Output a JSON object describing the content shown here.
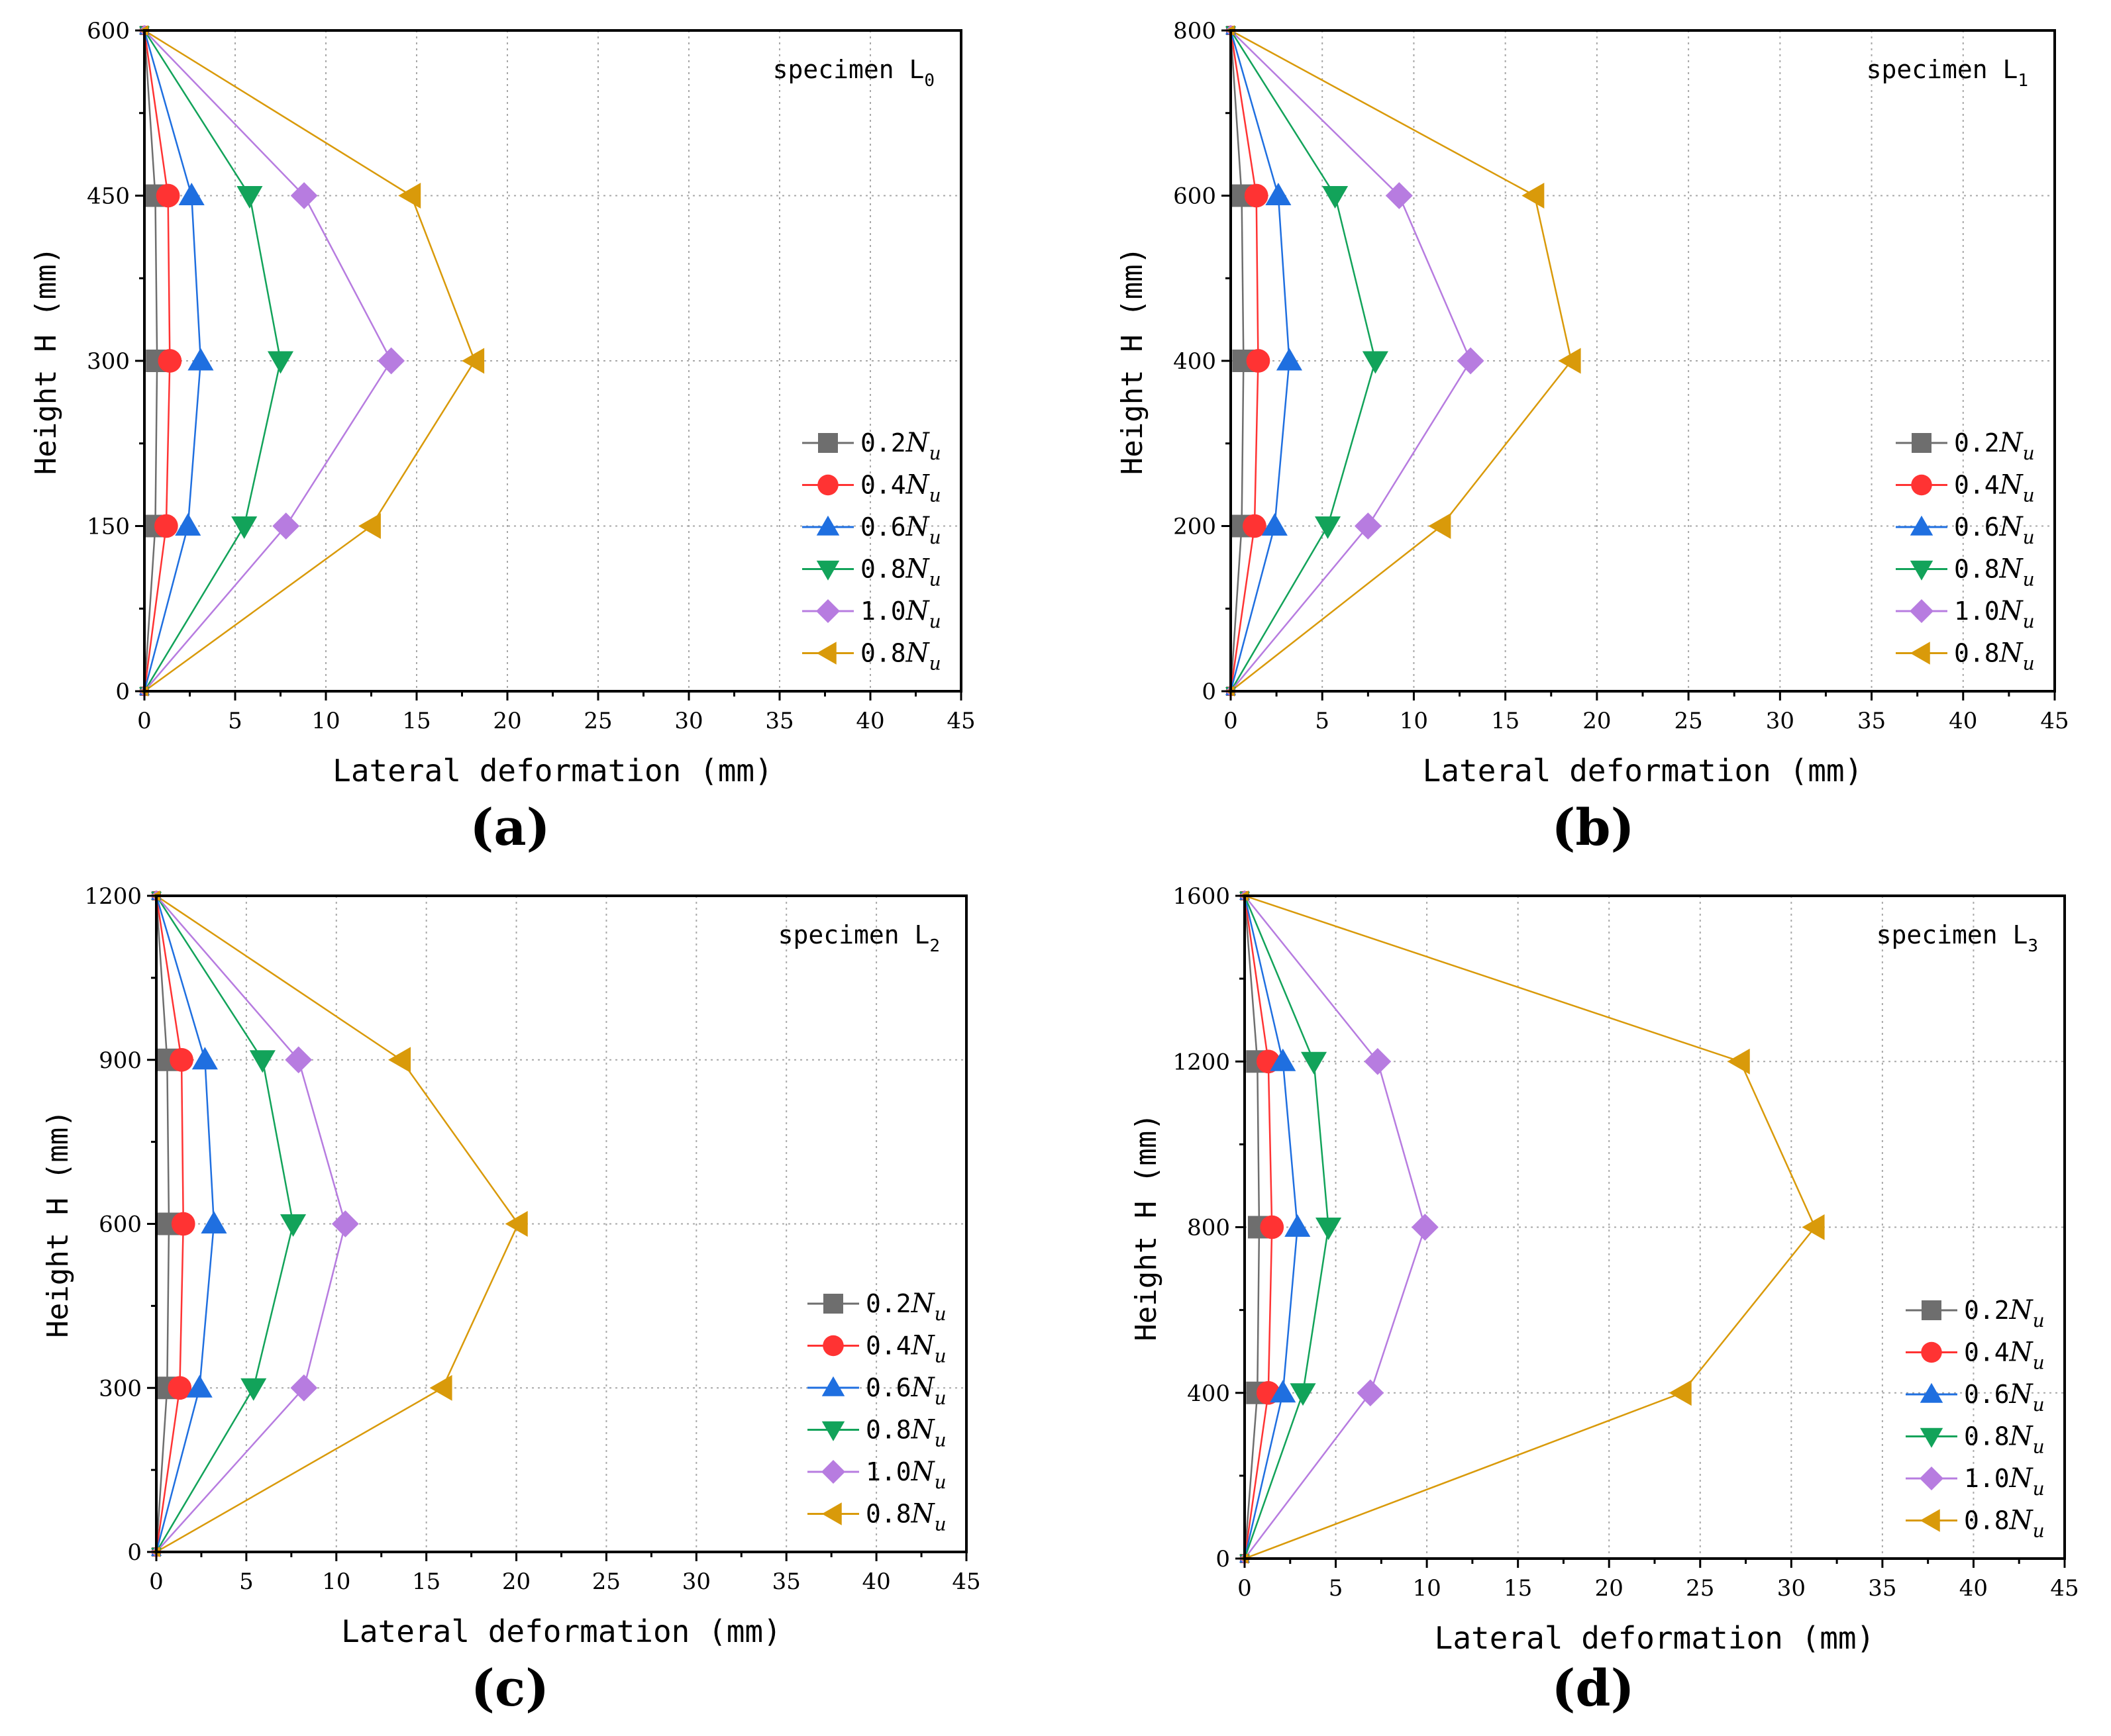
{
  "figure": {
    "panels": [
      "(a)",
      "(b)",
      "(c)",
      "(d)"
    ]
  },
  "chart_data": [
    {
      "type": "line",
      "panel_label": "(a)",
      "title": "",
      "annotation": "specimen L",
      "annotation_sub": "0",
      "xlabel": "Lateral deformation (mm)",
      "ylabel": "Height H (mm)",
      "xlim": [
        0,
        45
      ],
      "ylim": [
        0,
        600
      ],
      "xticks": [
        "0",
        "5",
        "10",
        "15",
        "20",
        "25",
        "30",
        "35",
        "40",
        "45"
      ],
      "yticks": [
        "0",
        "150",
        "300",
        "450",
        "600"
      ],
      "grid": true,
      "legend_position": "bottom-right",
      "series": [
        {
          "name": "0.2",
          "x": [
            0,
            0.6,
            0.7,
            0.6,
            0
          ],
          "y": [
            0,
            150,
            300,
            450,
            600
          ]
        },
        {
          "name": "0.4",
          "x": [
            0,
            1.2,
            1.4,
            1.3,
            0
          ],
          "y": [
            0,
            150,
            300,
            450,
            600
          ]
        },
        {
          "name": "0.6",
          "x": [
            0,
            2.4,
            3.1,
            2.6,
            0
          ],
          "y": [
            0,
            150,
            300,
            450,
            600
          ]
        },
        {
          "name": "0.8",
          "x": [
            0,
            5.5,
            7.5,
            5.8,
            0
          ],
          "y": [
            0,
            150,
            300,
            450,
            600
          ]
        },
        {
          "name": "1.0",
          "x": [
            0,
            7.8,
            13.6,
            8.8,
            0
          ],
          "y": [
            0,
            150,
            300,
            450,
            600
          ]
        },
        {
          "name": "0.8",
          "x": [
            0,
            12.5,
            18.2,
            14.7,
            0
          ],
          "y": [
            0,
            150,
            300,
            450,
            600
          ]
        }
      ]
    },
    {
      "type": "line",
      "panel_label": "(b)",
      "title": "",
      "annotation": "specimen L",
      "annotation_sub": "1",
      "xlabel": "Lateral deformation (mm)",
      "ylabel": "Height H (mm)",
      "xlim": [
        0,
        45
      ],
      "ylim": [
        0,
        800
      ],
      "xticks": [
        "0",
        "5",
        "10",
        "15",
        "20",
        "25",
        "30",
        "35",
        "40",
        "45"
      ],
      "yticks": [
        "0",
        "200",
        "400",
        "600",
        "800"
      ],
      "grid": true,
      "legend_position": "bottom-right",
      "series": [
        {
          "name": "0.2",
          "x": [
            0,
            0.6,
            0.7,
            0.6,
            0
          ],
          "y": [
            0,
            200,
            400,
            600,
            800
          ]
        },
        {
          "name": "0.4",
          "x": [
            0,
            1.3,
            1.5,
            1.4,
            0
          ],
          "y": [
            0,
            200,
            400,
            600,
            800
          ]
        },
        {
          "name": "0.6",
          "x": [
            0,
            2.4,
            3.2,
            2.6,
            0
          ],
          "y": [
            0,
            200,
            400,
            600,
            800
          ]
        },
        {
          "name": "0.8",
          "x": [
            0,
            5.3,
            7.9,
            5.7,
            0
          ],
          "y": [
            0,
            200,
            400,
            600,
            800
          ]
        },
        {
          "name": "1.0",
          "x": [
            0,
            7.5,
            13.1,
            9.2,
            0
          ],
          "y": [
            0,
            200,
            400,
            600,
            800
          ]
        },
        {
          "name": "0.8",
          "x": [
            0,
            11.5,
            18.6,
            16.6,
            0
          ],
          "y": [
            0,
            200,
            400,
            600,
            800
          ]
        }
      ]
    },
    {
      "type": "line",
      "panel_label": "(c)",
      "title": "",
      "annotation": "specimen L",
      "annotation_sub": "2",
      "xlabel": "Lateral deformation (mm)",
      "ylabel": "Height H (mm)",
      "xlim": [
        0,
        45
      ],
      "ylim": [
        0,
        1200
      ],
      "xticks": [
        "0",
        "5",
        "10",
        "15",
        "20",
        "25",
        "30",
        "35",
        "40",
        "45"
      ],
      "yticks": [
        "0",
        "300",
        "600",
        "900",
        "1200"
      ],
      "grid": true,
      "legend_position": "bottom-right",
      "series": [
        {
          "name": "0.2",
          "x": [
            0,
            0.6,
            0.7,
            0.6,
            0
          ],
          "y": [
            0,
            300,
            600,
            900,
            1200
          ]
        },
        {
          "name": "0.4",
          "x": [
            0,
            1.3,
            1.5,
            1.4,
            0
          ],
          "y": [
            0,
            300,
            600,
            900,
            1200
          ]
        },
        {
          "name": "0.6",
          "x": [
            0,
            2.4,
            3.2,
            2.7,
            0
          ],
          "y": [
            0,
            300,
            600,
            900,
            1200
          ]
        },
        {
          "name": "0.8",
          "x": [
            0,
            5.4,
            7.6,
            5.9,
            0
          ],
          "y": [
            0,
            300,
            600,
            900,
            1200
          ]
        },
        {
          "name": "1.0",
          "x": [
            0,
            8.2,
            10.5,
            7.9,
            0
          ],
          "y": [
            0,
            300,
            600,
            900,
            1200
          ]
        },
        {
          "name": "0.8",
          "x": [
            0,
            15.9,
            20.1,
            13.6,
            0
          ],
          "y": [
            0,
            300,
            600,
            900,
            1200
          ]
        }
      ]
    },
    {
      "type": "line",
      "panel_label": "(d)",
      "title": "",
      "annotation": "specimen L",
      "annotation_sub": "3",
      "xlabel": "Lateral deformation (mm)",
      "ylabel": "Height H (mm)",
      "xlim": [
        0,
        45
      ],
      "ylim": [
        0,
        1600
      ],
      "xticks": [
        "0",
        "5",
        "10",
        "15",
        "20",
        "25",
        "30",
        "35",
        "40",
        "45"
      ],
      "yticks": [
        "0",
        "400",
        "800",
        "1200",
        "1600"
      ],
      "grid": true,
      "legend_position": "bottom-right",
      "series": [
        {
          "name": "0.2",
          "x": [
            0,
            0.7,
            0.8,
            0.7,
            0
          ],
          "y": [
            0,
            400,
            800,
            1200,
            1600
          ]
        },
        {
          "name": "0.4",
          "x": [
            0,
            1.3,
            1.5,
            1.3,
            0
          ],
          "y": [
            0,
            400,
            800,
            1200,
            1600
          ]
        },
        {
          "name": "0.6",
          "x": [
            0,
            2.1,
            2.9,
            2.1,
            0
          ],
          "y": [
            0,
            400,
            800,
            1200,
            1600
          ]
        },
        {
          "name": "0.8",
          "x": [
            0,
            3.2,
            4.6,
            3.8,
            0
          ],
          "y": [
            0,
            400,
            800,
            1200,
            1600
          ]
        },
        {
          "name": "1.0",
          "x": [
            0,
            6.9,
            9.9,
            7.3,
            0
          ],
          "y": [
            0,
            400,
            800,
            1200,
            1600
          ]
        },
        {
          "name": "0.8",
          "x": [
            0,
            24.0,
            31.3,
            27.2,
            0
          ],
          "y": [
            0,
            400,
            800,
            1200,
            1600
          ]
        }
      ]
    }
  ]
}
